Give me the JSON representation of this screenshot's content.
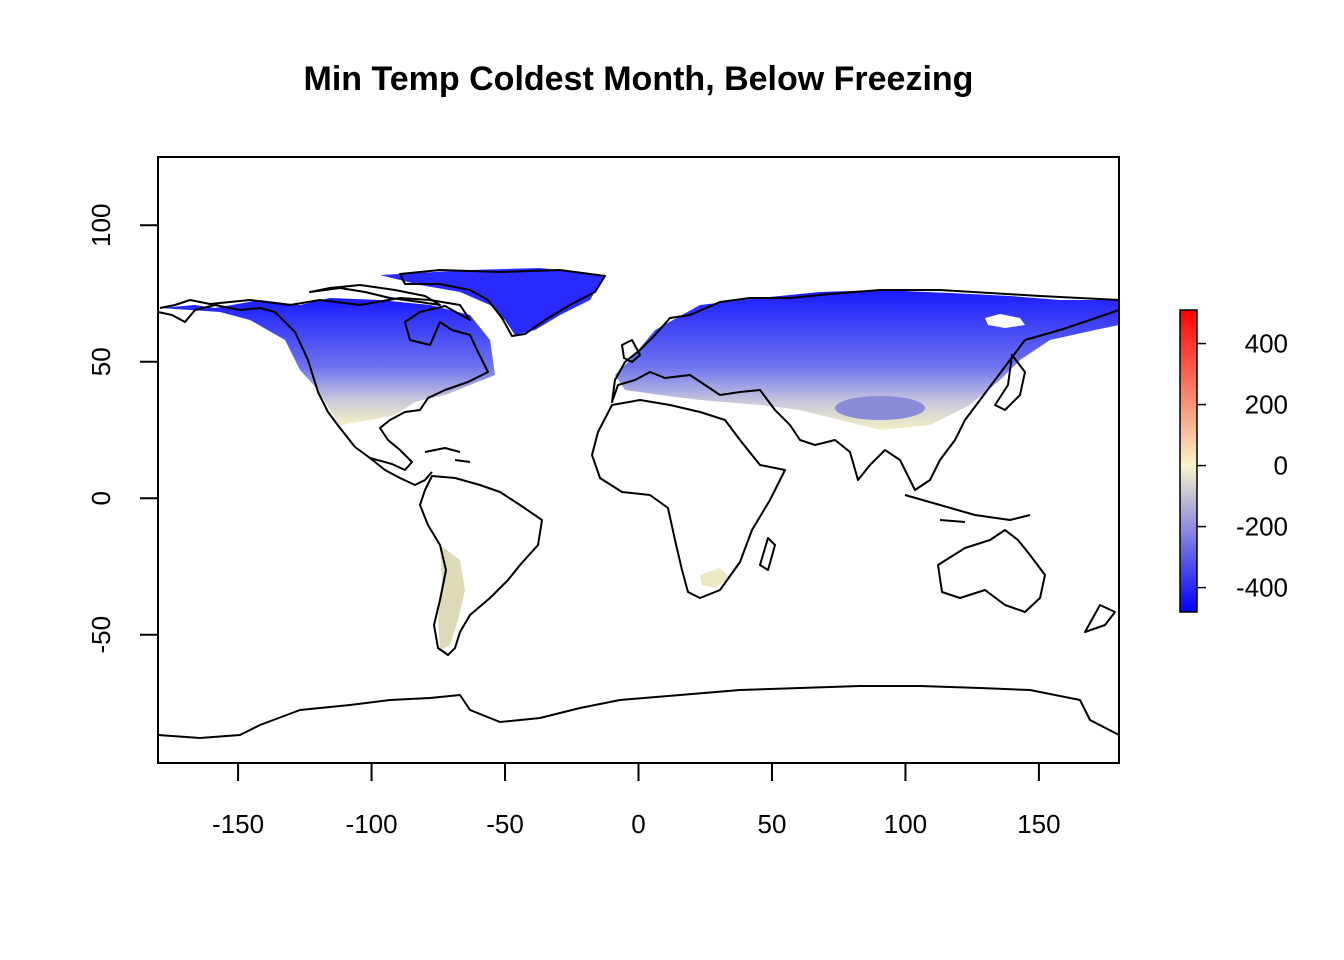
{
  "title": "Min Temp Coldest Month, Below Freezing",
  "map": {
    "xlim": [
      -180,
      180
    ],
    "ylim": [
      -97,
      125
    ],
    "x_ticks": [
      -150,
      -100,
      -50,
      0,
      50,
      100,
      150
    ],
    "y_ticks": [
      -50,
      0,
      50,
      100
    ],
    "x_tick_labels": [
      "-150",
      "-100",
      "-50",
      "0",
      "50",
      "100",
      "150"
    ],
    "y_tick_labels": [
      "-50",
      "0",
      "50",
      "100"
    ]
  },
  "legend": {
    "min": -480,
    "max": 510,
    "ticks": [
      -400,
      -200,
      0,
      200,
      400
    ],
    "tick_labels": [
      "-400",
      "-200",
      "0",
      "200",
      "400"
    ],
    "colors": [
      "#0000ff",
      "#f8f4c8",
      "#ff0000"
    ],
    "placement": "right"
  }
}
